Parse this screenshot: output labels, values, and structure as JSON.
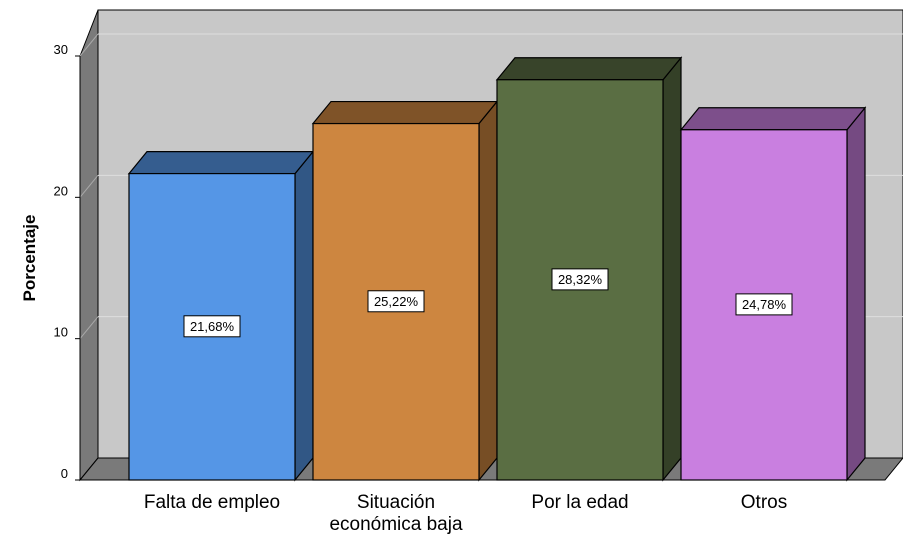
{
  "chart_data": {
    "type": "bar",
    "ylabel": "Porcentaje",
    "xlabel": "",
    "ylim": [
      0,
      30
    ],
    "yticks": [
      "0",
      "10",
      "20",
      "30"
    ],
    "grid": true,
    "categories": [
      [
        "Falta de empleo"
      ],
      [
        "Situación",
        "económica baja"
      ],
      [
        "Por la edad"
      ],
      [
        "Otros"
      ]
    ],
    "values": [
      21.68,
      25.22,
      28.32,
      24.78
    ],
    "data_labels": [
      "21,68%",
      "25,22%",
      "28,32%",
      "24,78%"
    ],
    "colors": [
      "#5596e6",
      "#cd8640",
      "#5a6e43",
      "#c97fe0"
    ]
  }
}
